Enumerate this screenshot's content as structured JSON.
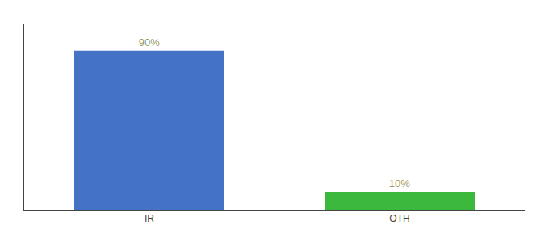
{
  "chart_data": {
    "type": "bar",
    "categories": [
      "IR",
      "OTH"
    ],
    "values": [
      90,
      10
    ],
    "value_labels": [
      "90%",
      "10%"
    ],
    "colors": [
      "#4472c4",
      "#3cb83c"
    ],
    "ylim": [
      0,
      105
    ],
    "grid": false,
    "data_labels": true,
    "tick_labels": "x"
  }
}
